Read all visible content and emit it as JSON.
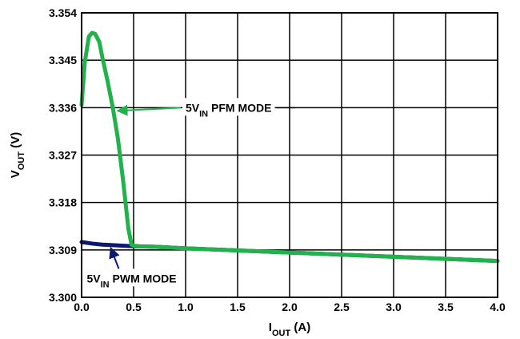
{
  "chart_data": {
    "type": "line",
    "title": "",
    "xlabel": {
      "main": "I",
      "sub": "OUT",
      "rest": " (A)"
    },
    "ylabel": {
      "main": "V",
      "sub": "OUT",
      "rest": " (V)"
    },
    "xlim": [
      0,
      4
    ],
    "ylim": [
      3.3,
      3.354
    ],
    "xticks": [
      0,
      0.5,
      1,
      1.5,
      2,
      2.5,
      3,
      3.5,
      4
    ],
    "xtick_labels": [
      "0.0",
      "0.5",
      "1.0",
      "1.5",
      "2.0",
      "2.5",
      "3.0",
      "3.5",
      "4.0"
    ],
    "yticks": [
      3.3,
      3.309,
      3.318,
      3.327,
      3.336,
      3.345,
      3.354
    ],
    "ytick_labels": [
      "3.300",
      "3.309",
      "3.318",
      "3.327",
      "3.336",
      "3.345",
      "3.354"
    ],
    "grid": true,
    "series": [
      {
        "color": "#0b1a6e",
        "x": [
          0,
          0.1,
          0.2,
          0.3,
          0.4,
          0.5,
          0.7,
          1.0,
          1.5,
          2.0,
          2.5,
          3.0,
          3.5,
          4.0
        ],
        "y": [
          3.3105,
          3.3102,
          3.31,
          3.3099,
          3.3098,
          3.3097,
          3.3096,
          3.3093,
          3.3089,
          3.3085,
          3.3081,
          3.3077,
          3.3073,
          3.3069
        ]
      },
      {
        "color": "#22b24c",
        "x": [
          0,
          0.03,
          0.07,
          0.1,
          0.13,
          0.17,
          0.2,
          0.25,
          0.3,
          0.35,
          0.4,
          0.45,
          0.48,
          0.5,
          0.55,
          0.7,
          1.0,
          1.5,
          2.0,
          2.5,
          3.0,
          3.5,
          4.0
        ],
        "y": [
          3.3365,
          3.3445,
          3.3495,
          3.3502,
          3.35,
          3.3485,
          3.3455,
          3.341,
          3.336,
          3.33,
          3.322,
          3.313,
          3.31,
          3.3098,
          3.3097,
          3.3096,
          3.3093,
          3.3089,
          3.3085,
          3.3081,
          3.3077,
          3.3073,
          3.3069
        ]
      }
    ],
    "annotations": [
      {
        "main": "5V",
        "sub": "IN",
        "rest": " PFM MODE",
        "series_index": 1,
        "target": {
          "x": 0.33,
          "y": 3.3354
        },
        "label": {
          "x": 1.0,
          "y": 3.336
        }
      },
      {
        "main": "5V",
        "sub": "IN",
        "rest": " PWM MODE",
        "series_index": 0,
        "target": {
          "x": 0.28,
          "y": 3.31
        },
        "label": {
          "x": 0.05,
          "y": 3.3036
        }
      }
    ]
  }
}
